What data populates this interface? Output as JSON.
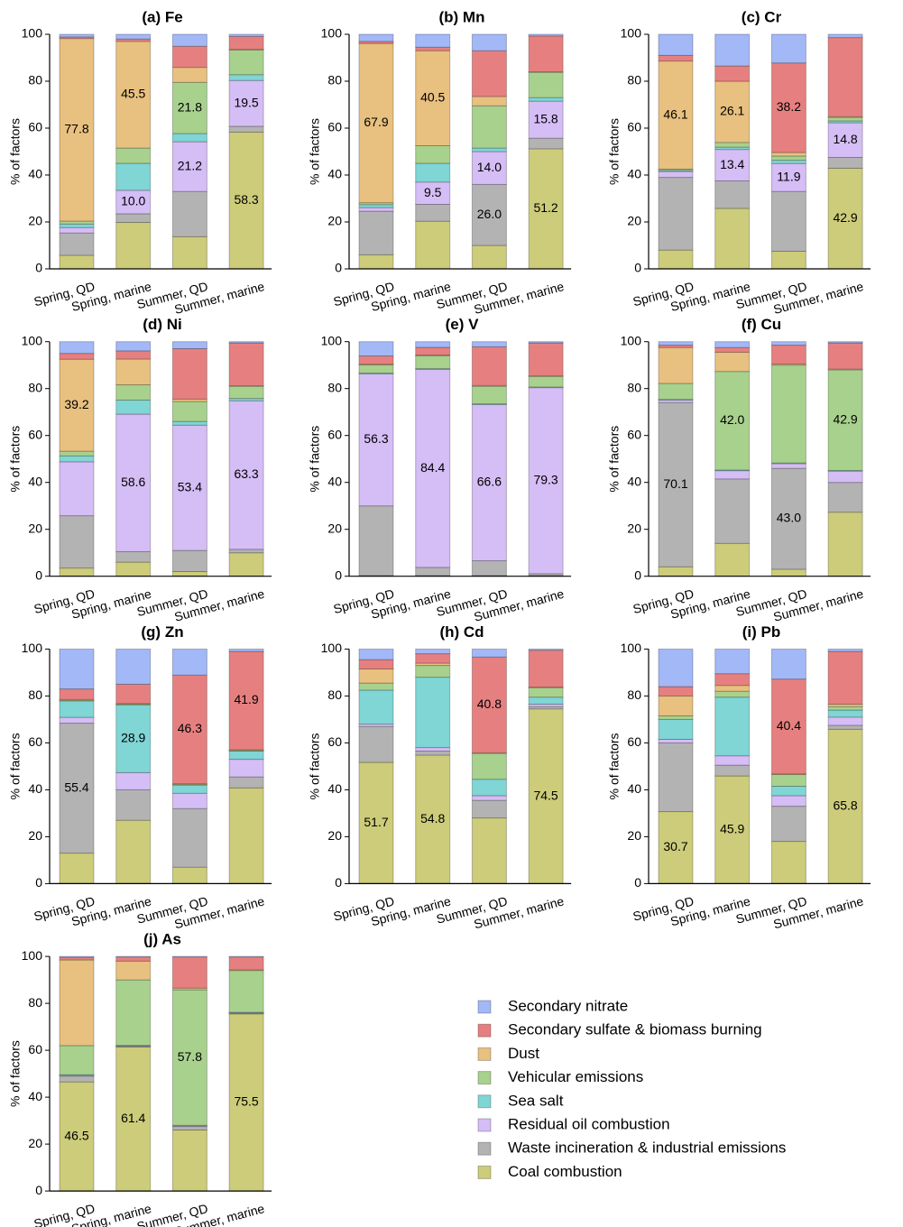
{
  "legend_position": "lower right",
  "chart_data": [
    {
      "type": "bar",
      "stacked": true,
      "title": "(a) Fe",
      "y_label": "% of factors",
      "categories": [
        "Spring, QD",
        "Spring, marine",
        "Summer, QD",
        "Summer, marine"
      ],
      "ylim": [
        0,
        100
      ],
      "yticks": [
        0,
        20,
        40,
        60,
        80,
        100
      ],
      "series": [
        {
          "color": "#cccc7a",
          "values": [
            5.8,
            19.8,
            13.7,
            58.3
          ],
          "value_labels": [
            null,
            null,
            null,
            "58.3"
          ]
        },
        {
          "color": "#b3b3b3",
          "values": [
            9.5,
            3.7,
            19.3,
            2.5
          ]
        },
        {
          "color": "#d5bdf5",
          "values": [
            2.3,
            10.0,
            21.2,
            19.5
          ],
          "value_labels": [
            null,
            "10.0",
            "21.2",
            "19.5"
          ]
        },
        {
          "color": "#80d5d5",
          "values": [
            1.5,
            11.5,
            3.5,
            2.5
          ]
        },
        {
          "color": "#a9d18e",
          "values": [
            1.3,
            6.5,
            21.8,
            10.5
          ],
          "value_labels": [
            null,
            null,
            "21.8",
            null
          ]
        },
        {
          "color": "#e8c07f",
          "values": [
            77.8,
            45.5,
            6.4,
            0.3
          ],
          "value_labels": [
            "77.8",
            "45.5",
            null,
            null
          ]
        },
        {
          "color": "#e68080",
          "values": [
            0.7,
            1.0,
            9.0,
            5.5
          ]
        },
        {
          "color": "#a3b8f7",
          "values": [
            1.1,
            2.0,
            5.1,
            0.9
          ]
        }
      ]
    },
    {
      "type": "bar",
      "stacked": true,
      "title": "(b) Mn",
      "y_label": "% of factors",
      "categories": [
        "Spring, QD",
        "Spring, marine",
        "Summer, QD",
        "Summer, marine"
      ],
      "ylim": [
        0,
        100
      ],
      "yticks": [
        0,
        20,
        40,
        60,
        80,
        100
      ],
      "series": [
        {
          "color": "#cccc7a",
          "values": [
            6.0,
            20.3,
            10.0,
            51.2
          ],
          "value_labels": [
            null,
            null,
            null,
            "51.2"
          ]
        },
        {
          "color": "#b3b3b3",
          "values": [
            18.6,
            7.2,
            26.0,
            4.5
          ],
          "value_labels": [
            null,
            null,
            "26.0",
            null
          ]
        },
        {
          "color": "#d5bdf5",
          "values": [
            1.5,
            9.5,
            14.0,
            15.8
          ],
          "value_labels": [
            null,
            "9.5",
            "14.0",
            "15.8"
          ]
        },
        {
          "color": "#80d5d5",
          "values": [
            1.3,
            8.0,
            1.5,
            1.5
          ]
        },
        {
          "color": "#a9d18e",
          "values": [
            0.8,
            7.5,
            18.0,
            10.8
          ]
        },
        {
          "color": "#e8c07f",
          "values": [
            67.9,
            40.5,
            4.0,
            0.2
          ],
          "value_labels": [
            "67.9",
            "40.5",
            null,
            null
          ]
        },
        {
          "color": "#e68080",
          "values": [
            0.9,
            1.5,
            19.5,
            15.3
          ]
        },
        {
          "color": "#a3b8f7",
          "values": [
            3.0,
            5.5,
            7.0,
            0.7
          ]
        }
      ]
    },
    {
      "type": "bar",
      "stacked": true,
      "title": "(c) Cr",
      "y_label": "% of factors",
      "categories": [
        "Spring, QD",
        "Spring, marine",
        "Summer, QD",
        "Summer, marine"
      ],
      "ylim": [
        0,
        100
      ],
      "yticks": [
        0,
        20,
        40,
        60,
        80,
        100
      ],
      "series": [
        {
          "color": "#cccc7a",
          "values": [
            8.0,
            25.8,
            7.5,
            42.9
          ],
          "value_labels": [
            null,
            null,
            null,
            "42.9"
          ]
        },
        {
          "color": "#b3b3b3",
          "values": [
            31.0,
            11.7,
            25.5,
            4.6
          ]
        },
        {
          "color": "#d5bdf5",
          "values": [
            2.5,
            13.4,
            11.9,
            14.8
          ],
          "value_labels": [
            null,
            "13.4",
            "11.9",
            "14.8"
          ]
        },
        {
          "color": "#80d5d5",
          "values": [
            0.5,
            1.0,
            1.4,
            0.8
          ]
        },
        {
          "color": "#a9d18e",
          "values": [
            0.5,
            2.0,
            1.8,
            1.5
          ]
        },
        {
          "color": "#e8c07f",
          "values": [
            46.1,
            26.1,
            1.5,
            0.3
          ],
          "value_labels": [
            "46.1",
            "26.1",
            null,
            null
          ]
        },
        {
          "color": "#e68080",
          "values": [
            2.4,
            6.5,
            38.2,
            33.7
          ],
          "value_labels": [
            null,
            null,
            "38.2",
            null
          ]
        },
        {
          "color": "#a3b8f7",
          "values": [
            9.0,
            13.5,
            12.2,
            1.4
          ]
        }
      ]
    },
    {
      "type": "bar",
      "stacked": true,
      "title": "(d) Ni",
      "y_label": "% of factors",
      "categories": [
        "Spring, QD",
        "Spring, marine",
        "Summer, QD",
        "Summer, marine"
      ],
      "ylim": [
        0,
        100
      ],
      "yticks": [
        0,
        20,
        40,
        60,
        80,
        100
      ],
      "series": [
        {
          "color": "#cccc7a",
          "values": [
            3.5,
            6.0,
            2.0,
            10.0
          ]
        },
        {
          "color": "#b3b3b3",
          "values": [
            22.3,
            4.5,
            9.0,
            1.5
          ]
        },
        {
          "color": "#d5bdf5",
          "values": [
            23.0,
            58.6,
            53.4,
            63.3
          ],
          "value_labels": [
            null,
            "58.6",
            "53.4",
            "63.3"
          ]
        },
        {
          "color": "#80d5d5",
          "values": [
            2.5,
            6.0,
            1.6,
            1.0
          ]
        },
        {
          "color": "#a9d18e",
          "values": [
            2.0,
            6.5,
            8.5,
            5.2
          ]
        },
        {
          "color": "#e8c07f",
          "values": [
            39.2,
            11.0,
            1.0,
            0.2
          ],
          "value_labels": [
            "39.2",
            null,
            null,
            null
          ]
        },
        {
          "color": "#e68080",
          "values": [
            2.5,
            3.5,
            21.5,
            18.3
          ]
        },
        {
          "color": "#a3b8f7",
          "values": [
            5.0,
            3.9,
            3.0,
            0.5
          ]
        }
      ]
    },
    {
      "type": "bar",
      "stacked": true,
      "title": "(e) V",
      "y_label": "% of factors",
      "categories": [
        "Spring, QD",
        "Spring, marine",
        "Summer, QD",
        "Summer, marine"
      ],
      "ylim": [
        0,
        100
      ],
      "yticks": [
        0,
        20,
        40,
        60,
        80,
        100
      ],
      "series": [
        {
          "color": "#cccc7a",
          "values": [
            0.3,
            0.3,
            0.3,
            0.3
          ]
        },
        {
          "color": "#b3b3b3",
          "values": [
            29.7,
            3.5,
            6.3,
            0.8
          ]
        },
        {
          "color": "#d5bdf5",
          "values": [
            56.3,
            84.4,
            66.6,
            79.3
          ],
          "value_labels": [
            "56.3",
            "84.4",
            "66.6",
            "79.3"
          ]
        },
        {
          "color": "#80d5d5",
          "values": [
            0.3,
            0.3,
            0.3,
            0.3
          ]
        },
        {
          "color": "#a9d18e",
          "values": [
            3.5,
            5.5,
            7.5,
            4.5
          ]
        },
        {
          "color": "#e8c07f",
          "values": [
            0.3,
            0.3,
            0.3,
            0.2
          ]
        },
        {
          "color": "#e68080",
          "values": [
            3.5,
            3.3,
            16.5,
            14.1
          ]
        },
        {
          "color": "#a3b8f7",
          "values": [
            6.1,
            2.4,
            2.2,
            0.5
          ]
        }
      ]
    },
    {
      "type": "bar",
      "stacked": true,
      "title": "(f) Cu",
      "y_label": "% of factors",
      "categories": [
        "Spring, QD",
        "Spring, marine",
        "Summer, QD",
        "Summer, marine"
      ],
      "ylim": [
        0,
        100
      ],
      "yticks": [
        0,
        20,
        40,
        60,
        80,
        100
      ],
      "series": [
        {
          "color": "#cccc7a",
          "values": [
            4.0,
            14.0,
            3.0,
            27.3
          ]
        },
        {
          "color": "#b3b3b3",
          "values": [
            70.1,
            27.5,
            43.0,
            12.7
          ],
          "value_labels": [
            "70.1",
            null,
            "43.0",
            null
          ]
        },
        {
          "color": "#d5bdf5",
          "values": [
            1.0,
            3.5,
            2.0,
            4.8
          ]
        },
        {
          "color": "#80d5d5",
          "values": [
            0.3,
            0.3,
            0.3,
            0.3
          ]
        },
        {
          "color": "#a9d18e",
          "values": [
            6.8,
            42.0,
            41.7,
            42.9
          ],
          "value_labels": [
            null,
            "42.0",
            null,
            "42.9"
          ]
        },
        {
          "color": "#e8c07f",
          "values": [
            15.3,
            8.2,
            0.5,
            0.3
          ]
        },
        {
          "color": "#e68080",
          "values": [
            1.0,
            2.0,
            8.0,
            11.2
          ]
        },
        {
          "color": "#a3b8f7",
          "values": [
            1.5,
            2.5,
            1.5,
            0.5
          ]
        }
      ]
    },
    {
      "type": "bar",
      "stacked": true,
      "title": "(g) Zn",
      "y_label": "% of factors",
      "categories": [
        "Spring, QD",
        "Spring, marine",
        "Summer, QD",
        "Summer, marine"
      ],
      "ylim": [
        0,
        100
      ],
      "yticks": [
        0,
        20,
        40,
        60,
        80,
        100
      ],
      "series": [
        {
          "color": "#cccc7a",
          "values": [
            13.0,
            27.0,
            7.0,
            40.8
          ]
        },
        {
          "color": "#b3b3b3",
          "values": [
            55.4,
            13.0,
            25.0,
            4.7
          ],
          "value_labels": [
            "55.4",
            null,
            null,
            null
          ]
        },
        {
          "color": "#d5bdf5",
          "values": [
            2.5,
            7.3,
            6.5,
            7.5
          ]
        },
        {
          "color": "#80d5d5",
          "values": [
            7.0,
            28.9,
            3.5,
            3.5
          ],
          "value_labels": [
            null,
            "28.9",
            null,
            null
          ]
        },
        {
          "color": "#a9d18e",
          "values": [
            0.3,
            0.3,
            0.3,
            0.3
          ]
        },
        {
          "color": "#e8c07f",
          "values": [
            0.3,
            0.3,
            0.3,
            0.3
          ]
        },
        {
          "color": "#e68080",
          "values": [
            4.5,
            8.2,
            46.3,
            41.9
          ],
          "value_labels": [
            null,
            null,
            "46.3",
            "41.9"
          ]
        },
        {
          "color": "#a3b8f7",
          "values": [
            17.0,
            15.0,
            11.1,
            1.0
          ]
        }
      ]
    },
    {
      "type": "bar",
      "stacked": true,
      "title": "(h) Cd",
      "y_label": "% of factors",
      "categories": [
        "Spring, QD",
        "Spring, marine",
        "Summer, QD",
        "Summer, marine"
      ],
      "ylim": [
        0,
        100
      ],
      "yticks": [
        0,
        20,
        40,
        60,
        80,
        100
      ],
      "series": [
        {
          "color": "#cccc7a",
          "values": [
            51.7,
            54.8,
            28.0,
            74.5
          ],
          "value_labels": [
            "51.7",
            "54.8",
            null,
            "74.5"
          ]
        },
        {
          "color": "#b3b3b3",
          "values": [
            15.3,
            1.7,
            7.5,
            1.0
          ]
        },
        {
          "color": "#d5bdf5",
          "values": [
            1.0,
            1.5,
            2.0,
            1.0
          ]
        },
        {
          "color": "#80d5d5",
          "values": [
            14.5,
            30.0,
            7.0,
            3.0
          ]
        },
        {
          "color": "#a9d18e",
          "values": [
            3.0,
            5.0,
            11.0,
            4.0
          ]
        },
        {
          "color": "#e8c07f",
          "values": [
            6.0,
            1.0,
            0.3,
            0.3
          ]
        },
        {
          "color": "#e68080",
          "values": [
            4.0,
            4.0,
            40.8,
            15.7
          ],
          "value_labels": [
            null,
            null,
            "40.8",
            null
          ]
        },
        {
          "color": "#a3b8f7",
          "values": [
            4.5,
            2.0,
            3.4,
            0.5
          ]
        }
      ]
    },
    {
      "type": "bar",
      "stacked": true,
      "title": "(i) Pb",
      "y_label": "% of factors",
      "categories": [
        "Spring, QD",
        "Spring, marine",
        "Summer, QD",
        "Summer, marine"
      ],
      "ylim": [
        0,
        100
      ],
      "yticks": [
        0,
        20,
        40,
        60,
        80,
        100
      ],
      "series": [
        {
          "color": "#cccc7a",
          "values": [
            30.7,
            45.9,
            18.0,
            65.8
          ],
          "value_labels": [
            "30.7",
            "45.9",
            null,
            "65.8"
          ]
        },
        {
          "color": "#b3b3b3",
          "values": [
            29.3,
            4.6,
            15.0,
            1.7
          ]
        },
        {
          "color": "#d5bdf5",
          "values": [
            1.5,
            4.0,
            4.5,
            3.5
          ]
        },
        {
          "color": "#80d5d5",
          "values": [
            8.5,
            25.0,
            4.0,
            3.0
          ]
        },
        {
          "color": "#a9d18e",
          "values": [
            1.5,
            2.5,
            5.0,
            1.5
          ]
        },
        {
          "color": "#e8c07f",
          "values": [
            8.5,
            2.5,
            0.3,
            1.0
          ]
        },
        {
          "color": "#e68080",
          "values": [
            4.0,
            5.0,
            40.4,
            22.5
          ],
          "value_labels": [
            null,
            null,
            "40.4",
            null
          ]
        },
        {
          "color": "#a3b8f7",
          "values": [
            16.0,
            10.5,
            12.8,
            1.0
          ]
        }
      ]
    },
    {
      "type": "bar",
      "stacked": true,
      "title": "(j) As",
      "y_label": "% of factors",
      "categories": [
        "Spring, QD",
        "Spring, marine",
        "Summer, QD",
        "Summer, marine"
      ],
      "ylim": [
        0,
        100
      ],
      "yticks": [
        0,
        20,
        40,
        60,
        80,
        100
      ],
      "series": [
        {
          "name": "Coal combustion",
          "color": "#cccc7a",
          "values": [
            46.5,
            61.4,
            26.0,
            75.5
          ],
          "value_labels": [
            "46.5",
            "61.4",
            null,
            "75.5"
          ]
        },
        {
          "name": "Waste incineration & industrial emissions",
          "color": "#b3b3b3",
          "values": [
            2.5,
            0.3,
            1.5,
            0.3
          ]
        },
        {
          "name": "Residual oil combustion",
          "color": "#d5bdf5",
          "values": [
            0.3,
            0.2,
            0.3,
            0.2
          ]
        },
        {
          "name": "Sea salt",
          "color": "#80d5d5",
          "values": [
            0.3,
            0.2,
            0.2,
            0.2
          ]
        },
        {
          "name": "Vehicular emissions",
          "color": "#a9d18e",
          "values": [
            12.4,
            27.9,
            57.8,
            17.8
          ],
          "value_labels": [
            null,
            null,
            "57.8",
            null
          ]
        },
        {
          "name": "Dust",
          "color": "#e8c07f",
          "values": [
            36.5,
            8.0,
            0.7,
            0.3
          ]
        },
        {
          "name": "Secondary sulfate & biomass burning",
          "color": "#e68080",
          "values": [
            1.2,
            1.8,
            13.3,
            5.5
          ]
        },
        {
          "name": "Secondary nitrate",
          "color": "#a3b8f7",
          "values": [
            0.3,
            0.2,
            0.2,
            0.2
          ]
        }
      ]
    }
  ]
}
